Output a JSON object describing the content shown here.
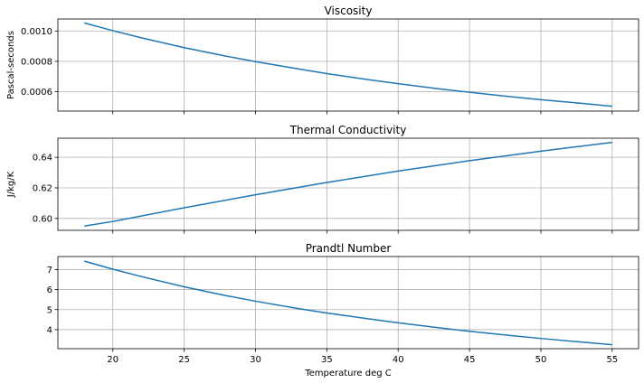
{
  "chart_data": [
    {
      "type": "line",
      "title": "Viscosity",
      "xlabel": "",
      "ylabel": "Pascal-seconds",
      "xlim": [
        16.15,
        56.85
      ],
      "ylim": [
        0.000472,
        0.001079
      ],
      "grid": true,
      "color": "#1f77b4",
      "x": [
        18,
        20,
        22,
        25,
        28,
        30,
        33,
        35,
        38,
        40,
        43,
        45,
        48,
        50,
        53,
        55
      ],
      "y": [
        0.001053,
        0.001002,
        0.000955,
        0.00089,
        0.000833,
        0.000798,
        0.00075,
        0.000719,
        0.000678,
        0.000653,
        0.000617,
        0.000596,
        0.000566,
        0.000547,
        0.000522,
        0.000504
      ],
      "yticks": [
        0.0006,
        0.0008,
        0.001
      ],
      "ytick_labels": [
        "0.0006",
        "0.0008",
        "0.0010"
      ],
      "xticks": [
        20,
        25,
        30,
        35,
        40,
        45,
        50,
        55
      ],
      "xtick_labels": [
        "",
        "",
        "",
        "",
        "",
        "",
        "",
        ""
      ]
    },
    {
      "type": "line",
      "title": "Thermal Conductivity",
      "xlabel": "",
      "ylabel": "J/kg/K",
      "xlim": [
        16.15,
        56.85
      ],
      "ylim": [
        0.5922,
        0.6525
      ],
      "grid": true,
      "color": "#1f77b4",
      "x": [
        18,
        20,
        25,
        30,
        35,
        40,
        45,
        50,
        55
      ],
      "y": [
        0.595,
        0.598,
        0.607,
        0.6155,
        0.6235,
        0.631,
        0.6378,
        0.644,
        0.6498
      ],
      "yticks": [
        0.6,
        0.62,
        0.64
      ],
      "ytick_labels": [
        "0.60",
        "0.62",
        "0.64"
      ],
      "xticks": [
        20,
        25,
        30,
        35,
        40,
        45,
        50,
        55
      ],
      "xtick_labels": [
        "",
        "",
        "",
        "",
        "",
        "",
        "",
        ""
      ]
    },
    {
      "type": "line",
      "title": "Prandtl Number",
      "xlabel": "Temperature deg C",
      "ylabel": "",
      "xlim": [
        16.15,
        56.85
      ],
      "ylim": [
        3.05,
        7.65
      ],
      "grid": true,
      "color": "#1f77b4",
      "x": [
        18,
        20,
        22,
        25,
        28,
        30,
        33,
        35,
        38,
        40,
        43,
        45,
        48,
        50,
        53,
        55
      ],
      "y": [
        7.42,
        7.02,
        6.65,
        6.14,
        5.69,
        5.42,
        5.05,
        4.83,
        4.53,
        4.34,
        4.08,
        3.92,
        3.7,
        3.56,
        3.37,
        3.25
      ],
      "yticks": [
        4,
        5,
        6,
        7
      ],
      "ytick_labels": [
        "4",
        "5",
        "6",
        "7"
      ],
      "xticks": [
        20,
        25,
        30,
        35,
        40,
        45,
        50,
        55
      ],
      "xtick_labels": [
        "20",
        "25",
        "30",
        "35",
        "40",
        "45",
        "50",
        "55"
      ]
    }
  ]
}
